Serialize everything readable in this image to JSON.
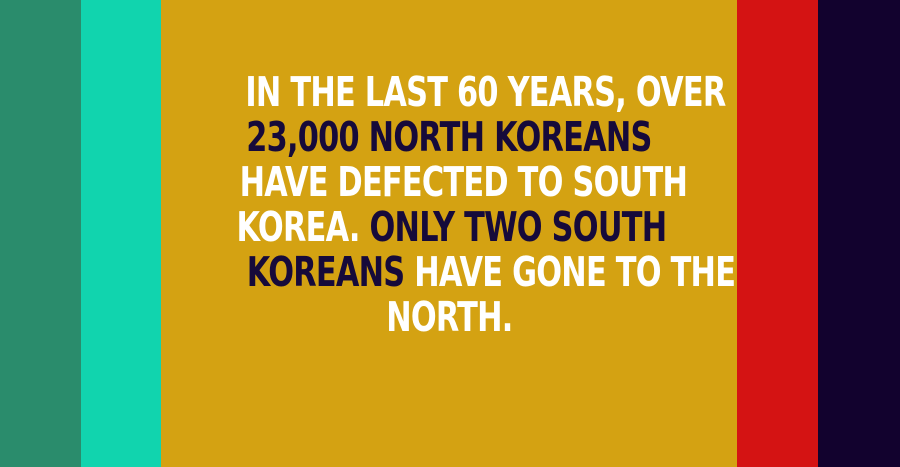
{
  "colors": {
    "stripe_1": "#2a8c6c",
    "stripe_2": "#11d4ae",
    "panel": "#d4a212",
    "stripe_3": "#d41313",
    "stripe_4": "#12022e",
    "text_light": "#ffffff",
    "text_dark": "#160a3a"
  },
  "fact": {
    "line1": "IN THE LAST 60 YEARS, OVER",
    "line2": "23,000 NORTH KOREANS",
    "line3": "HAVE DEFECTED TO SOUTH",
    "line4a": "KOREA.",
    "line4b": "ONLY TWO SOUTH",
    "line5a": "KOREANS",
    "line5b": "HAVE GONE TO THE",
    "line6": "NORTH."
  }
}
